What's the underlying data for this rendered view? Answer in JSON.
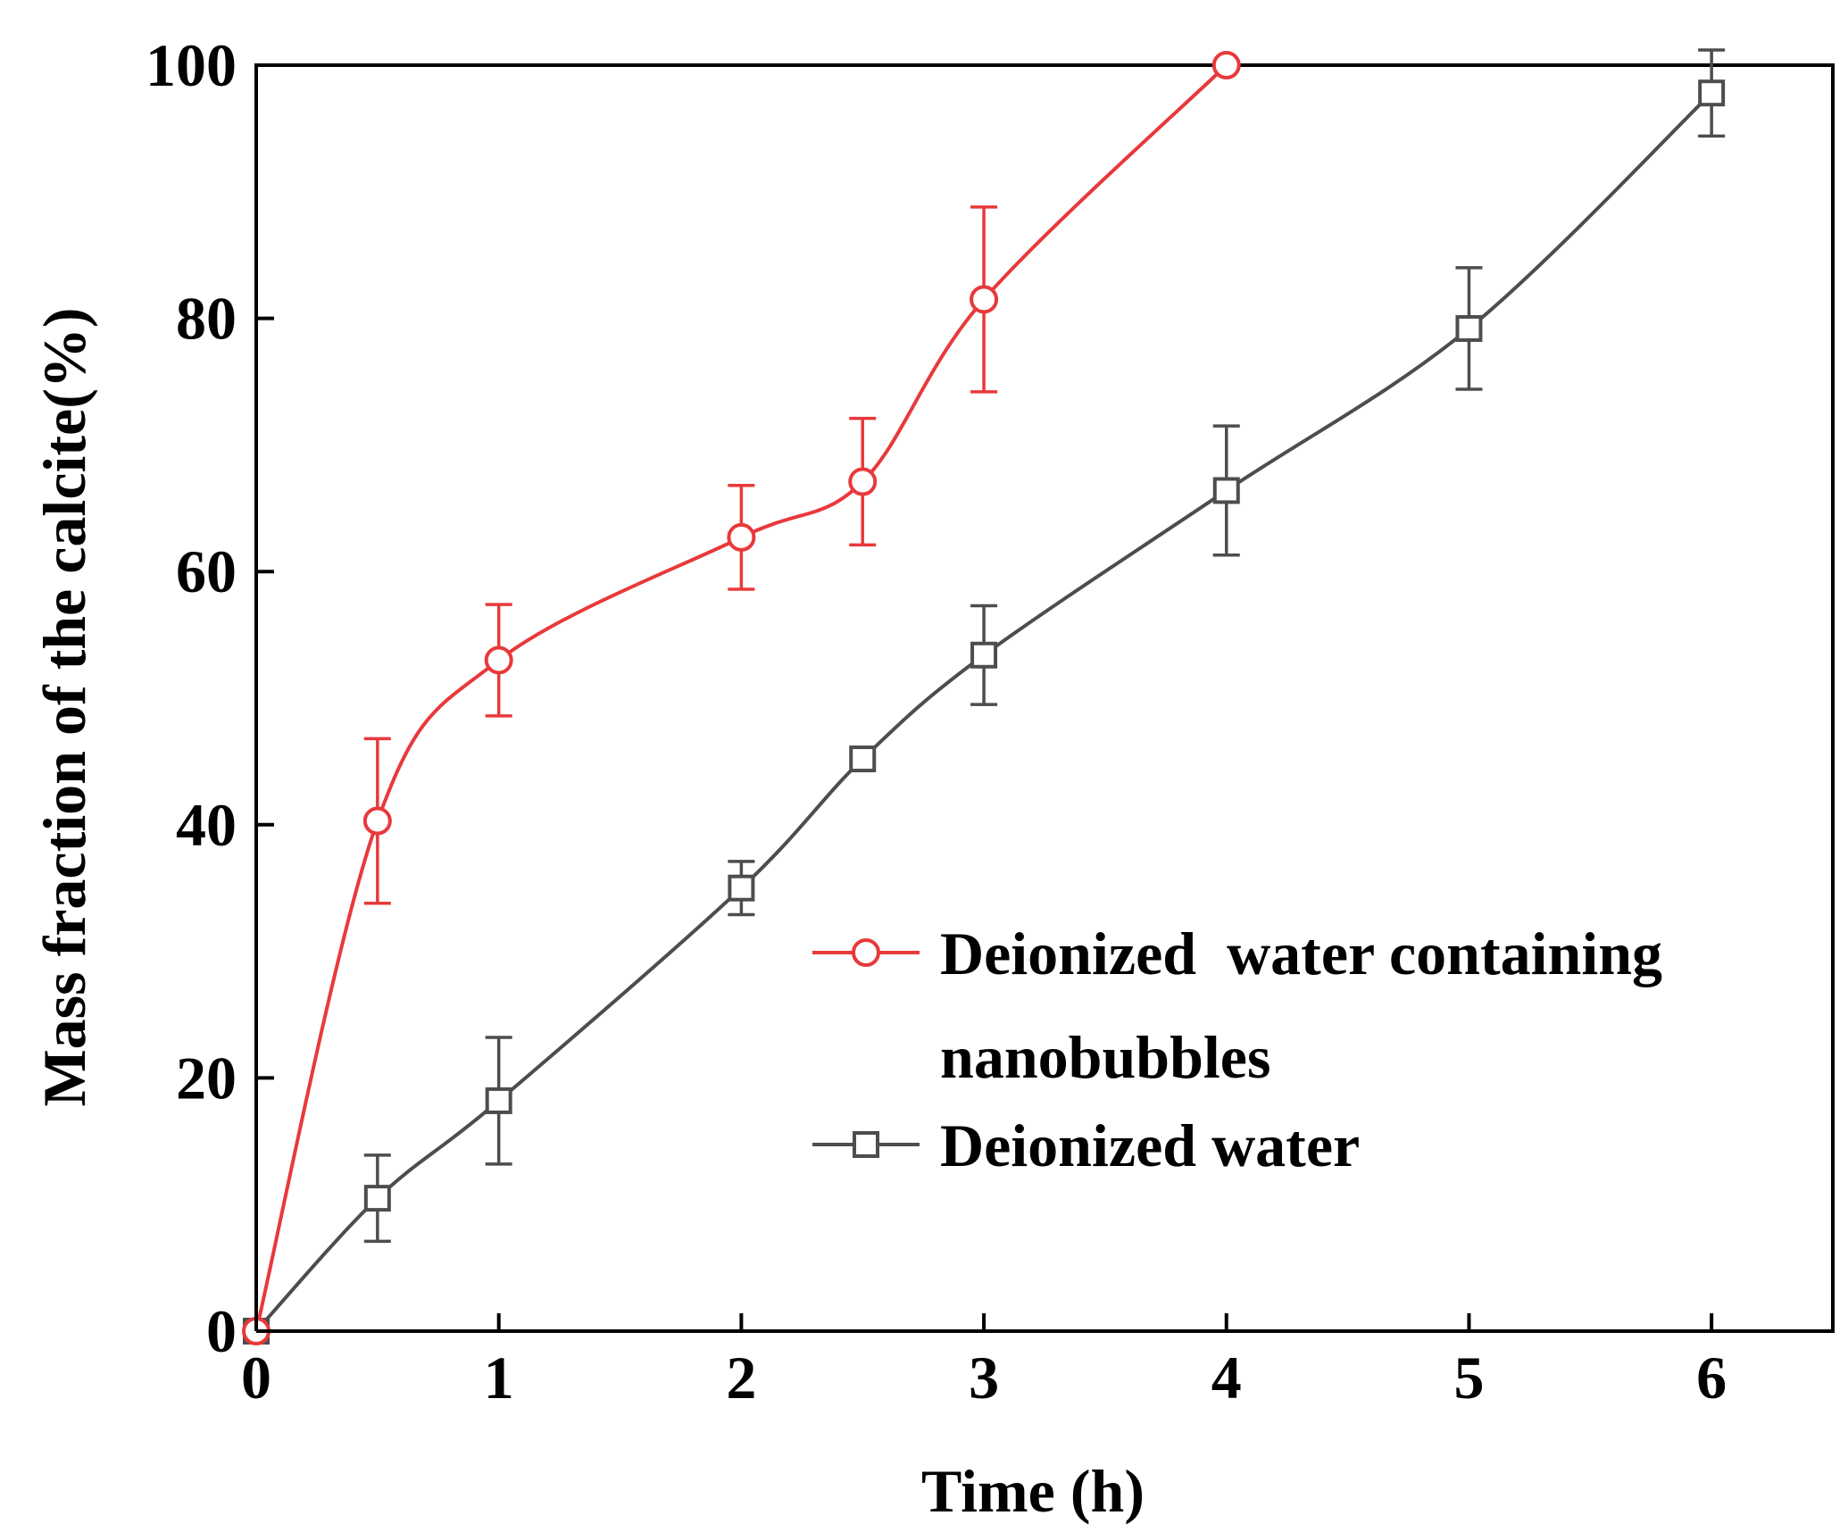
{
  "chart_data": {
    "type": "line",
    "xlabel": "Time (h)",
    "ylabel": "Mass fraction of the calcite(%)",
    "xlim": [
      0,
      6.5
    ],
    "ylim": [
      0,
      100
    ],
    "x_ticks": [
      "0",
      "1",
      "2",
      "3",
      "4",
      "5",
      "6"
    ],
    "y_ticks": [
      "0",
      "20",
      "40",
      "60",
      "80",
      "100"
    ],
    "legend_position": "center-right",
    "series": [
      {
        "name": "Deionized water containing nanobubbles",
        "legend_lines": [
          "Deionized  water containing",
          "nanobubbles"
        ],
        "color": "#e8393b",
        "marker": "circle",
        "x": [
          0,
          0.5,
          1,
          2,
          2.5,
          3,
          4
        ],
        "y": [
          0,
          40.3,
          53,
          62.7,
          67.1,
          81.5,
          100
        ],
        "err": [
          0,
          6.5,
          4.4,
          4.1,
          5,
          7.3,
          0
        ]
      },
      {
        "name": "Deionized water",
        "legend_lines": [
          "Deionized water"
        ],
        "color": "#4d4d4d",
        "marker": "square",
        "x": [
          0,
          0.5,
          1,
          2,
          2.5,
          3,
          4,
          5,
          6
        ],
        "y": [
          0,
          10.5,
          18.2,
          35,
          45.2,
          53.4,
          66.4,
          79.2,
          97.8
        ],
        "err": [
          0,
          3.4,
          5,
          2.1,
          0,
          3.9,
          5.1,
          4.8,
          3.4
        ]
      }
    ]
  }
}
